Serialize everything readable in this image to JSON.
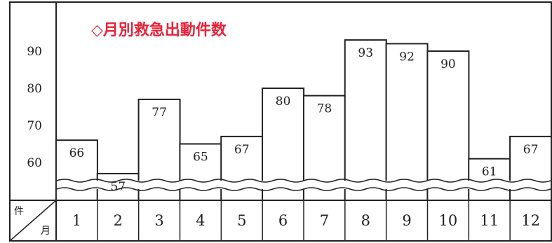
{
  "chart_data": {
    "type": "bar",
    "title": "◇月別救急出動件数",
    "categories": [
      "1",
      "2",
      "3",
      "4",
      "5",
      "6",
      "7",
      "8",
      "9",
      "10",
      "11",
      "12"
    ],
    "values": [
      66,
      57,
      77,
      65,
      67,
      80,
      78,
      93,
      92,
      90,
      61,
      67
    ],
    "yticks": [
      "60",
      "70",
      "80",
      "90"
    ],
    "ylim": [
      50,
      95
    ],
    "axis_break": true,
    "header_row_label": "件",
    "header_col_label": "月",
    "grid": false,
    "title_color": "#e6243a"
  }
}
